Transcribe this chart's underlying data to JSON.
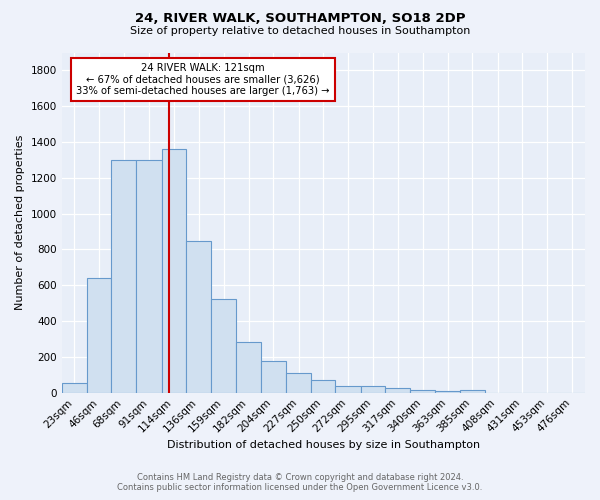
{
  "title": "24, RIVER WALK, SOUTHAMPTON, SO18 2DP",
  "subtitle": "Size of property relative to detached houses in Southampton",
  "xlabel": "Distribution of detached houses by size in Southampton",
  "ylabel": "Number of detached properties",
  "footnote1": "Contains HM Land Registry data © Crown copyright and database right 2024.",
  "footnote2": "Contains public sector information licensed under the Open Government Licence v3.0.",
  "annotation_title": "24 RIVER WALK: 121sqm",
  "annotation_line1": "← 67% of detached houses are smaller (3,626)",
  "annotation_line2": "33% of semi-detached houses are larger (1,763) →",
  "vline_x": 121,
  "bar_categories": [
    "23sqm",
    "46sqm",
    "68sqm",
    "91sqm",
    "114sqm",
    "136sqm",
    "159sqm",
    "182sqm",
    "204sqm",
    "227sqm",
    "250sqm",
    "272sqm",
    "295sqm",
    "317sqm",
    "340sqm",
    "363sqm",
    "385sqm",
    "408sqm",
    "431sqm",
    "453sqm",
    "476sqm"
  ],
  "bar_values": [
    55,
    640,
    1300,
    1300,
    1360,
    845,
    525,
    285,
    175,
    110,
    70,
    38,
    38,
    25,
    15,
    10,
    18,
    0,
    0,
    0,
    0
  ],
  "bar_edges": [
    23,
    46,
    68,
    91,
    114,
    136,
    159,
    182,
    204,
    227,
    250,
    272,
    295,
    317,
    340,
    363,
    385,
    408,
    431,
    453,
    476
  ],
  "bar_color": "#d0e0f0",
  "bar_edgecolor": "#6699cc",
  "vline_color": "#cc0000",
  "annotation_box_edgecolor": "#cc0000",
  "background_color": "#eef2fa",
  "plot_bg_color": "#e8eef8",
  "ylim": [
    0,
    1900
  ],
  "yticks": [
    0,
    200,
    400,
    600,
    800,
    1000,
    1200,
    1400,
    1600,
    1800
  ],
  "title_fontsize": 9.5,
  "subtitle_fontsize": 8,
  "ylabel_fontsize": 8,
  "xlabel_fontsize": 8,
  "tick_fontsize": 7.5,
  "annotation_fontsize": 7.2,
  "footnote_fontsize": 6
}
